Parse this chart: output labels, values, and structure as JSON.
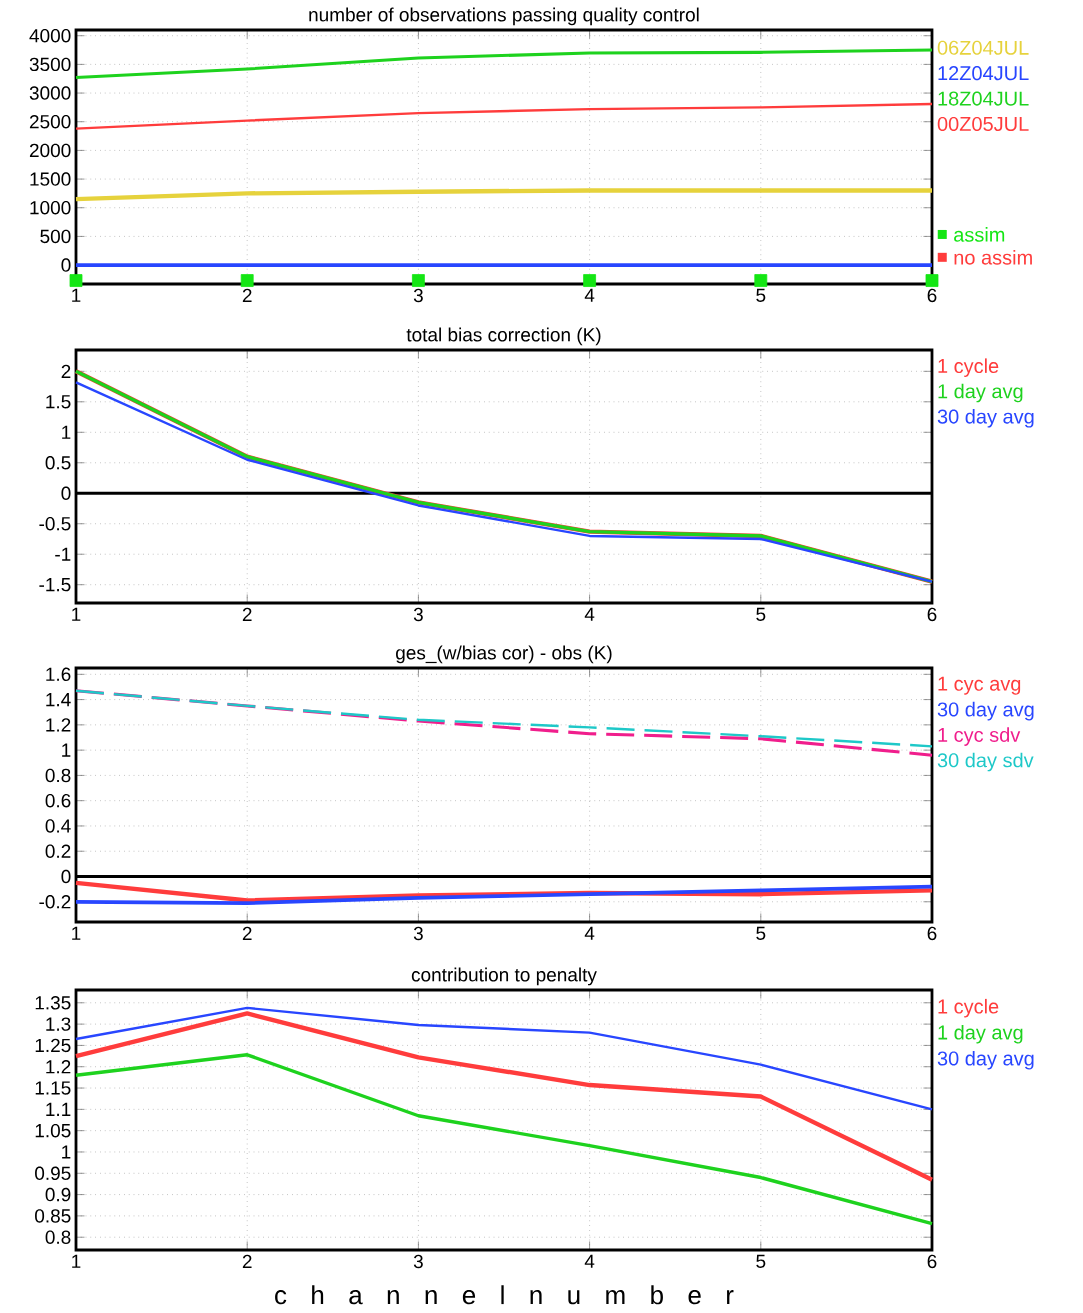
{
  "chart_data": [
    {
      "type": "line",
      "title": "number of observations passing quality control",
      "x": [
        1,
        2,
        3,
        4,
        5,
        6
      ],
      "xlim": [
        1,
        6
      ],
      "xticks": [
        1,
        2,
        3,
        4,
        5,
        6
      ],
      "ylim": [
        -330,
        4100
      ],
      "yticks": [
        0,
        500,
        1000,
        1500,
        2000,
        2500,
        3000,
        3500,
        4000
      ],
      "grid": true,
      "legend": "right",
      "series": [
        {
          "name": "06Z04JUL",
          "color": "#e6d23c",
          "values": [
            1150,
            1250,
            1280,
            1300,
            1300,
            1300
          ]
        },
        {
          "name": "12Z04JUL",
          "color": "#2846ff",
          "values": [
            0,
            0,
            0,
            0,
            0,
            0
          ]
        },
        {
          "name": "18Z04JUL",
          "color": "#1ed21e",
          "values": [
            3270,
            3420,
            3610,
            3700,
            3710,
            3750
          ]
        },
        {
          "name": "00Z05JUL",
          "color": "#ff3c3c",
          "values": [
            2380,
            2520,
            2650,
            2720,
            2750,
            2810
          ]
        },
        {
          "name": "assim",
          "type": "scatter",
          "marker": "square",
          "color": "#14e614",
          "values": [
            -270,
            -270,
            -270,
            -270,
            -270,
            -270
          ]
        },
        {
          "name": "no assim",
          "type": "scatter",
          "marker": "square",
          "color": "#ff3c3c",
          "values": [
            null,
            null,
            null,
            null,
            null,
            null
          ]
        }
      ]
    },
    {
      "type": "line",
      "title": "total bias correction (K)",
      "x": [
        1,
        2,
        3,
        4,
        5,
        6
      ],
      "xlim": [
        1,
        6
      ],
      "xticks": [
        1,
        2,
        3,
        4,
        5,
        6
      ],
      "ylim": [
        -1.8,
        2.35
      ],
      "yticks": [
        -1.5,
        -1,
        -0.5,
        0,
        0.5,
        1,
        1.5,
        2
      ],
      "grid": true,
      "legend": "right",
      "ref_lines": [
        {
          "axis": "y",
          "value": 0,
          "color": "#000000"
        }
      ],
      "series": [
        {
          "name": "1 cycle",
          "color": "#ff3c3c",
          "values": [
            2.0,
            0.6,
            -0.15,
            -0.63,
            -0.7,
            -1.45
          ]
        },
        {
          "name": "1 day avg",
          "color": "#1ed21e",
          "values": [
            2.0,
            0.6,
            -0.15,
            -0.63,
            -0.7,
            -1.45
          ]
        },
        {
          "name": "30 day avg",
          "color": "#2846ff",
          "values": [
            1.82,
            0.55,
            -0.2,
            -0.7,
            -0.75,
            -1.45
          ]
        }
      ]
    },
    {
      "type": "line",
      "title": "ges_(w/bias cor) - obs (K)",
      "x": [
        1,
        2,
        3,
        4,
        5,
        6
      ],
      "xlim": [
        1,
        6
      ],
      "xticks": [
        1,
        2,
        3,
        4,
        5,
        6
      ],
      "ylim": [
        -0.36,
        1.65
      ],
      "yticks": [
        -0.2,
        0,
        0.2,
        0.4,
        0.6,
        0.8,
        1,
        1.2,
        1.4,
        1.6
      ],
      "grid": true,
      "legend": "right",
      "ref_lines": [
        {
          "axis": "y",
          "value": 0,
          "color": "#000000"
        }
      ],
      "series": [
        {
          "name": "1 cyc avg",
          "color": "#ff3c3c",
          "values": [
            -0.05,
            -0.19,
            -0.15,
            -0.13,
            -0.14,
            -0.11
          ]
        },
        {
          "name": "30 day avg",
          "color": "#2846ff",
          "values": [
            -0.2,
            -0.21,
            -0.17,
            -0.14,
            -0.11,
            -0.08
          ]
        },
        {
          "name": "1 cyc sdv",
          "color": "#f01e8c",
          "line_style": "dashed",
          "values": [
            1.47,
            1.35,
            1.23,
            1.13,
            1.09,
            0.96
          ]
        },
        {
          "name": "30 day sdv",
          "color": "#1ec8c8",
          "line_style": "dashed",
          "values": [
            1.47,
            1.35,
            1.24,
            1.18,
            1.11,
            1.03
          ]
        }
      ]
    },
    {
      "type": "line",
      "title": "contribution to penalty",
      "xlabel": "c h a n n e l n u m b e r",
      "x": [
        1,
        2,
        3,
        4,
        5,
        6
      ],
      "xlim": [
        1,
        6
      ],
      "xticks": [
        1,
        2,
        3,
        4,
        5,
        6
      ],
      "ylim": [
        0.77,
        1.38
      ],
      "yticks": [
        0.8,
        0.85,
        0.9,
        0.95,
        1,
        1.05,
        1.1,
        1.15,
        1.2,
        1.25,
        1.3,
        1.35
      ],
      "grid": true,
      "legend": "right",
      "series": [
        {
          "name": "1 cycle",
          "color": "#ff3c3c",
          "values": [
            1.225,
            1.325,
            1.222,
            1.157,
            1.13,
            0.935
          ]
        },
        {
          "name": "1 day avg",
          "color": "#1ed21e",
          "values": [
            1.18,
            1.228,
            1.085,
            1.015,
            0.94,
            0.832
          ]
        },
        {
          "name": "30 day avg",
          "color": "#2846ff",
          "values": [
            1.265,
            1.338,
            1.298,
            1.28,
            1.205,
            1.1
          ]
        }
      ]
    }
  ]
}
